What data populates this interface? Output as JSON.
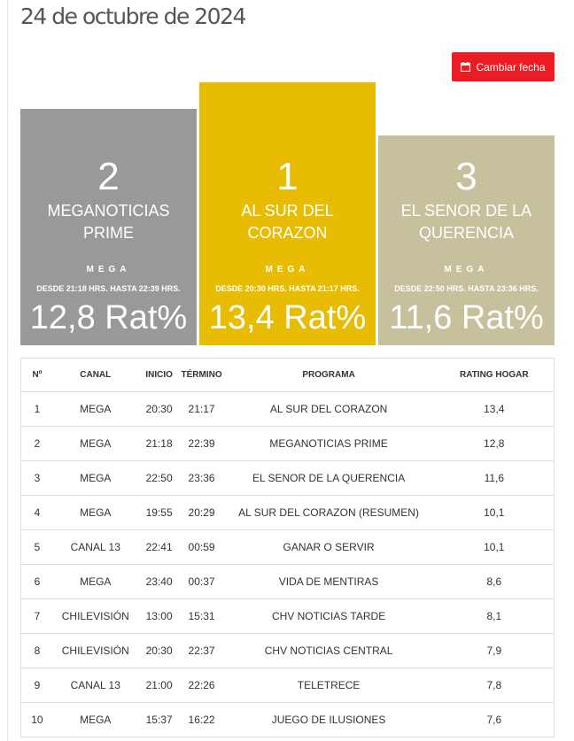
{
  "header": {
    "date_title": "24 de octubre de 2024"
  },
  "toolbar": {
    "change_date_label": "Cambiar fecha"
  },
  "podium": [
    {
      "rank": "2",
      "program": "MEGANOTICIAS PRIME",
      "channel": "MEGA",
      "range": "DESDE 21:18 HRS. HASTA 22:39 HRS.",
      "rating": "12,8 Rat%",
      "color": "#999999"
    },
    {
      "rank": "1",
      "program": "AL SUR DEL CORAZON",
      "channel": "MEGA",
      "range": "DESDE 20:30 HRS. HASTA 21:17 HRS.",
      "rating": "13,4 Rat%",
      "color": "#e8bc03"
    },
    {
      "rank": "3",
      "program": "EL SENOR DE LA QUERENCIA",
      "channel": "MEGA",
      "range": "DESDE 22:50 HRS. HASTA 23:36 HRS.",
      "rating": "11,6 Rat%",
      "color": "#c6c19c"
    }
  ],
  "table": {
    "headers": [
      "Nº",
      "CANAL",
      "INICIO",
      "TÉRMINO",
      "PROGRAMA",
      "RATING HOGAR"
    ],
    "rows": [
      [
        "1",
        "MEGA",
        "20:30",
        "21:17",
        "AL SUR DEL CORAZON",
        "13,4"
      ],
      [
        "2",
        "MEGA",
        "21:18",
        "22:39",
        "MEGANOTICIAS PRIME",
        "12,8"
      ],
      [
        "3",
        "MEGA",
        "22:50",
        "23:36",
        "EL SENOR DE LA QUERENCIA",
        "11,6"
      ],
      [
        "4",
        "MEGA",
        "19:55",
        "20:29",
        "AL SUR DEL CORAZON (RESUMEN)",
        "10,1"
      ],
      [
        "5",
        "CANAL 13",
        "22:41",
        "00:59",
        "GANAR O SERVIR",
        "10,1"
      ],
      [
        "6",
        "MEGA",
        "23:40",
        "00:37",
        "VIDA DE MENTIRAS",
        "8,6"
      ],
      [
        "7",
        "CHILEVISIÓN",
        "13:00",
        "15:31",
        "CHV NOTICIAS TARDE",
        "8,1"
      ],
      [
        "8",
        "CHILEVISIÓN",
        "20:30",
        "22:37",
        "CHV NOTICIAS CENTRAL",
        "7,9"
      ],
      [
        "9",
        "CANAL 13",
        "21:00",
        "22:26",
        "TELETRECE",
        "7,8"
      ],
      [
        "10",
        "MEGA",
        "15:37",
        "16:22",
        "JUEGO DE ILUSIONES",
        "7,6"
      ]
    ]
  },
  "colors": {
    "accent": "#ec1c24"
  },
  "icons": {
    "date_button": "calendar-icon"
  }
}
